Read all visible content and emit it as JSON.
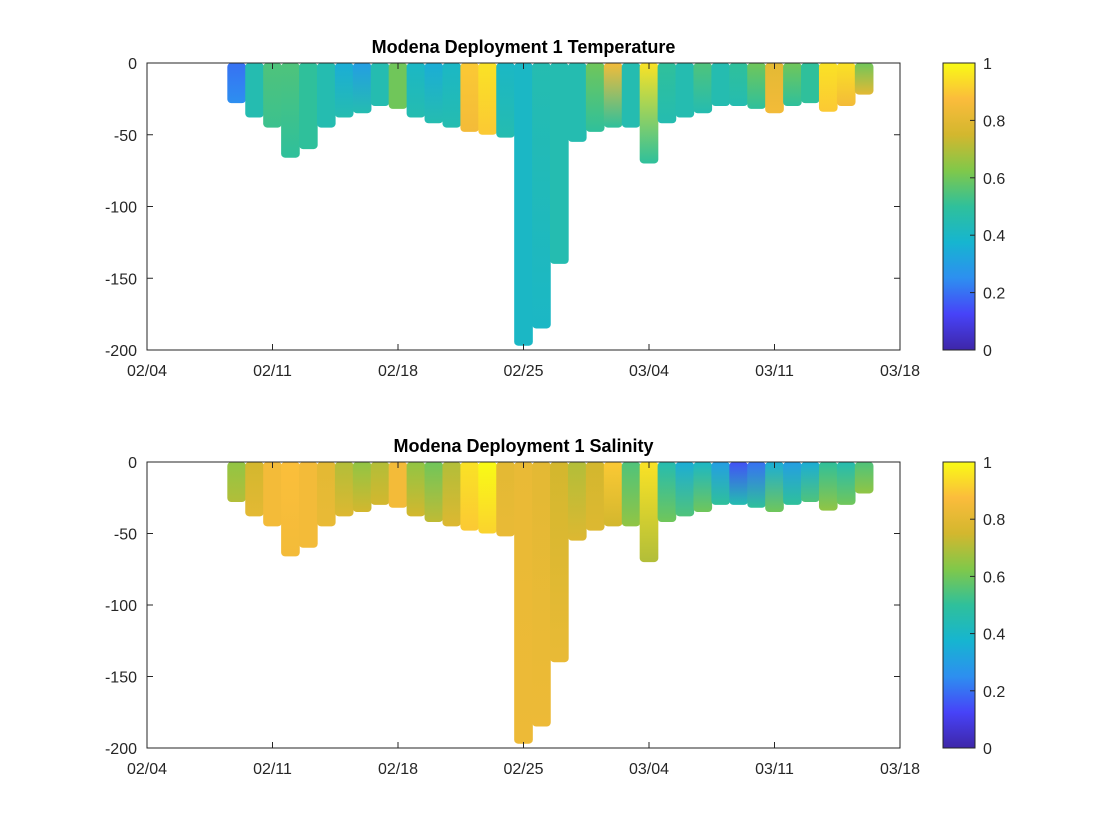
{
  "colormap": [
    "#3e26a8",
    "#4743f8",
    "#2d8ff0",
    "#16b5d0",
    "#2fc09b",
    "#80c84a",
    "#d3b72e",
    "#fbbc3c",
    "#f9fb15"
  ],
  "chart_data": [
    {
      "type": "heatmap",
      "title": "Modena Deployment 1 Temperature",
      "xlabel": "",
      "ylabel": "",
      "x_range": [
        "02/04",
        "03/18"
      ],
      "ylim": [
        -200,
        0
      ],
      "xticks": [
        "02/04",
        "02/11",
        "02/18",
        "02/25",
        "03/04",
        "03/11",
        "03/18"
      ],
      "yticks": [
        0,
        -50,
        -100,
        -150,
        -200
      ],
      "colorbar": {
        "ticks": [
          1,
          0.8,
          0.6,
          0.4,
          0.2,
          0
        ],
        "range": [
          0,
          1
        ]
      },
      "profiles": [
        {
          "date": "02/09",
          "depth": -28,
          "top": 0.2,
          "deep": 0.25
        },
        {
          "date": "02/10",
          "depth": -38,
          "top": 0.45,
          "deep": 0.45
        },
        {
          "date": "02/11",
          "depth": -45,
          "top": 0.55,
          "deep": 0.52
        },
        {
          "date": "02/12",
          "depth": -66,
          "top": 0.55,
          "deep": 0.5
        },
        {
          "date": "02/13",
          "depth": -60,
          "top": 0.5,
          "deep": 0.5
        },
        {
          "date": "02/14",
          "depth": -45,
          "top": 0.45,
          "deep": 0.45
        },
        {
          "date": "02/15",
          "depth": -38,
          "top": 0.35,
          "deep": 0.45
        },
        {
          "date": "02/16",
          "depth": -35,
          "top": 0.3,
          "deep": 0.45
        },
        {
          "date": "02/17",
          "depth": -30,
          "top": 0.45,
          "deep": 0.45
        },
        {
          "date": "02/18",
          "depth": -32,
          "top": 0.6,
          "deep": 0.6
        },
        {
          "date": "02/19",
          "depth": -38,
          "top": 0.4,
          "deep": 0.45
        },
        {
          "date": "02/20",
          "depth": -42,
          "top": 0.35,
          "deep": 0.45
        },
        {
          "date": "02/21",
          "depth": -45,
          "top": 0.4,
          "deep": 0.45
        },
        {
          "date": "02/22",
          "depth": -48,
          "top": 0.9,
          "deep": 0.85
        },
        {
          "date": "02/23",
          "depth": -50,
          "top": 0.95,
          "deep": 0.9
        },
        {
          "date": "02/24",
          "depth": -52,
          "top": 0.4,
          "deep": 0.45
        },
        {
          "date": "02/25",
          "depth": -197,
          "top": 0.4,
          "deep": 0.4
        },
        {
          "date": "02/26",
          "depth": -185,
          "top": 0.45,
          "deep": 0.4
        },
        {
          "date": "02/27",
          "depth": -140,
          "top": 0.45,
          "deep": 0.45
        },
        {
          "date": "02/28",
          "depth": -55,
          "top": 0.45,
          "deep": 0.45
        },
        {
          "date": "03/01",
          "depth": -48,
          "top": 0.6,
          "deep": 0.5
        },
        {
          "date": "03/02",
          "depth": -45,
          "top": 0.85,
          "deep": 0.5
        },
        {
          "date": "03/03",
          "depth": -45,
          "top": 0.45,
          "deep": 0.45
        },
        {
          "date": "03/04",
          "depth": -70,
          "top": 0.95,
          "deep": 0.5
        },
        {
          "date": "03/05",
          "depth": -42,
          "top": 0.5,
          "deep": 0.45
        },
        {
          "date": "03/06",
          "depth": -38,
          "top": 0.45,
          "deep": 0.45
        },
        {
          "date": "03/07",
          "depth": -35,
          "top": 0.55,
          "deep": 0.45
        },
        {
          "date": "03/08",
          "depth": -30,
          "top": 0.45,
          "deep": 0.45
        },
        {
          "date": "03/09",
          "depth": -30,
          "top": 0.5,
          "deep": 0.45
        },
        {
          "date": "03/10",
          "depth": -32,
          "top": 0.6,
          "deep": 0.5
        },
        {
          "date": "03/11",
          "depth": -35,
          "top": 0.8,
          "deep": 0.85
        },
        {
          "date": "03/12",
          "depth": -30,
          "top": 0.6,
          "deep": 0.5
        },
        {
          "date": "03/13",
          "depth": -28,
          "top": 0.5,
          "deep": 0.5
        },
        {
          "date": "03/14",
          "depth": -34,
          "top": 0.95,
          "deep": 0.9
        },
        {
          "date": "03/15",
          "depth": -30,
          "top": 0.95,
          "deep": 0.85
        },
        {
          "date": "03/16",
          "depth": -22,
          "top": 0.6,
          "deep": 0.8
        }
      ]
    },
    {
      "type": "heatmap",
      "title": "Modena Deployment 1 Salinity",
      "xlabel": "",
      "ylabel": "",
      "x_range": [
        "02/04",
        "03/18"
      ],
      "ylim": [
        -200,
        0
      ],
      "xticks": [
        "02/04",
        "02/11",
        "02/18",
        "02/25",
        "03/04",
        "03/11",
        "03/18"
      ],
      "yticks": [
        0,
        -50,
        -100,
        -150,
        -200
      ],
      "colorbar": {
        "ticks": [
          1,
          0.8,
          0.6,
          0.4,
          0.2,
          0
        ],
        "range": [
          0,
          1
        ]
      },
      "profiles": [
        {
          "date": "02/09",
          "depth": -28,
          "top": 0.65,
          "deep": 0.7
        },
        {
          "date": "02/10",
          "depth": -38,
          "top": 0.75,
          "deep": 0.8
        },
        {
          "date": "02/11",
          "depth": -45,
          "top": 0.85,
          "deep": 0.85
        },
        {
          "date": "02/12",
          "depth": -66,
          "top": 0.88,
          "deep": 0.85
        },
        {
          "date": "02/13",
          "depth": -60,
          "top": 0.85,
          "deep": 0.85
        },
        {
          "date": "02/14",
          "depth": -45,
          "top": 0.8,
          "deep": 0.82
        },
        {
          "date": "02/15",
          "depth": -38,
          "top": 0.7,
          "deep": 0.78
        },
        {
          "date": "02/16",
          "depth": -35,
          "top": 0.65,
          "deep": 0.75
        },
        {
          "date": "02/17",
          "depth": -30,
          "top": 0.7,
          "deep": 0.75
        },
        {
          "date": "02/18",
          "depth": -32,
          "top": 0.85,
          "deep": 0.85
        },
        {
          "date": "02/19",
          "depth": -38,
          "top": 0.65,
          "deep": 0.75
        },
        {
          "date": "02/20",
          "depth": -42,
          "top": 0.6,
          "deep": 0.72
        },
        {
          "date": "02/21",
          "depth": -45,
          "top": 0.7,
          "deep": 0.78
        },
        {
          "date": "02/22",
          "depth": -48,
          "top": 0.95,
          "deep": 0.9
        },
        {
          "date": "02/23",
          "depth": -50,
          "top": 1.0,
          "deep": 0.92
        },
        {
          "date": "02/24",
          "depth": -52,
          "top": 0.8,
          "deep": 0.82
        },
        {
          "date": "02/25",
          "depth": -197,
          "top": 0.82,
          "deep": 0.83
        },
        {
          "date": "02/26",
          "depth": -185,
          "top": 0.8,
          "deep": 0.83
        },
        {
          "date": "02/27",
          "depth": -140,
          "top": 0.75,
          "deep": 0.82
        },
        {
          "date": "02/28",
          "depth": -55,
          "top": 0.7,
          "deep": 0.78
        },
        {
          "date": "03/01",
          "depth": -48,
          "top": 0.75,
          "deep": 0.78
        },
        {
          "date": "03/02",
          "depth": -45,
          "top": 0.9,
          "deep": 0.75
        },
        {
          "date": "03/03",
          "depth": -45,
          "top": 0.55,
          "deep": 0.65
        },
        {
          "date": "03/04",
          "depth": -70,
          "top": 0.95,
          "deep": 0.7
        },
        {
          "date": "03/05",
          "depth": -42,
          "top": 0.45,
          "deep": 0.6
        },
        {
          "date": "03/06",
          "depth": -38,
          "top": 0.35,
          "deep": 0.55
        },
        {
          "date": "03/07",
          "depth": -35,
          "top": 0.4,
          "deep": 0.6
        },
        {
          "date": "03/08",
          "depth": -30,
          "top": 0.3,
          "deep": 0.5
        },
        {
          "date": "03/09",
          "depth": -30,
          "top": 0.15,
          "deep": 0.45
        },
        {
          "date": "03/10",
          "depth": -32,
          "top": 0.2,
          "deep": 0.5
        },
        {
          "date": "03/11",
          "depth": -35,
          "top": 0.35,
          "deep": 0.6
        },
        {
          "date": "03/12",
          "depth": -30,
          "top": 0.3,
          "deep": 0.5
        },
        {
          "date": "03/13",
          "depth": -28,
          "top": 0.35,
          "deep": 0.55
        },
        {
          "date": "03/14",
          "depth": -34,
          "top": 0.5,
          "deep": 0.65
        },
        {
          "date": "03/15",
          "depth": -30,
          "top": 0.45,
          "deep": 0.6
        },
        {
          "date": "03/16",
          "depth": -22,
          "top": 0.55,
          "deep": 0.65
        }
      ]
    }
  ]
}
